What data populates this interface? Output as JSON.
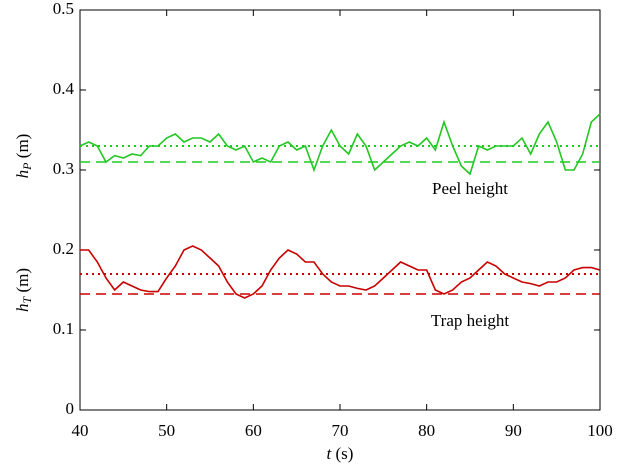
{
  "chart_data": {
    "type": "line",
    "x_label": {
      "symbol": "t",
      "unit": "(s)"
    },
    "y_labels": [
      {
        "symbol": "h",
        "subscript": "P",
        "unit": "(m)"
      },
      {
        "symbol": "h",
        "subscript": "T",
        "unit": "(m)"
      }
    ],
    "x": [
      40,
      41,
      42,
      43,
      44,
      45,
      46,
      47,
      48,
      49,
      50,
      51,
      52,
      53,
      54,
      55,
      56,
      57,
      58,
      59,
      60,
      61,
      62,
      63,
      64,
      65,
      66,
      67,
      68,
      69,
      70,
      71,
      72,
      73,
      74,
      75,
      76,
      77,
      78,
      79,
      80,
      81,
      82,
      83,
      84,
      85,
      86,
      87,
      88,
      89,
      90,
      91,
      92,
      93,
      94,
      95,
      96,
      97,
      98,
      99,
      100
    ],
    "series": [
      {
        "name": "Peel height",
        "color": "#22c722",
        "values": [
          0.33,
          0.335,
          0.33,
          0.31,
          0.318,
          0.315,
          0.32,
          0.318,
          0.33,
          0.33,
          0.34,
          0.345,
          0.335,
          0.34,
          0.34,
          0.335,
          0.345,
          0.33,
          0.325,
          0.33,
          0.31,
          0.315,
          0.31,
          0.33,
          0.335,
          0.325,
          0.33,
          0.3,
          0.33,
          0.35,
          0.33,
          0.32,
          0.345,
          0.33,
          0.3,
          0.31,
          0.32,
          0.33,
          0.335,
          0.33,
          0.34,
          0.325,
          0.36,
          0.33,
          0.305,
          0.295,
          0.33,
          0.325,
          0.33,
          0.33,
          0.33,
          0.34,
          0.32,
          0.345,
          0.36,
          0.335,
          0.3,
          0.3,
          0.32,
          0.36,
          0.37
        ],
        "mean": 0.33,
        "baseline": 0.31
      },
      {
        "name": "Trap height",
        "color": "#c80000",
        "values": [
          0.2,
          0.2,
          0.185,
          0.165,
          0.15,
          0.16,
          0.155,
          0.15,
          0.148,
          0.148,
          0.165,
          0.18,
          0.2,
          0.205,
          0.2,
          0.19,
          0.18,
          0.16,
          0.145,
          0.14,
          0.145,
          0.155,
          0.175,
          0.19,
          0.2,
          0.195,
          0.185,
          0.185,
          0.17,
          0.16,
          0.155,
          0.155,
          0.152,
          0.15,
          0.155,
          0.165,
          0.175,
          0.185,
          0.18,
          0.175,
          0.175,
          0.15,
          0.145,
          0.15,
          0.16,
          0.165,
          0.175,
          0.185,
          0.18,
          0.17,
          0.165,
          0.16,
          0.158,
          0.155,
          0.16,
          0.16,
          0.165,
          0.175,
          0.178,
          0.178,
          0.175
        ],
        "mean": 0.17,
        "baseline": 0.145
      }
    ],
    "xlim": [
      40,
      100
    ],
    "ylim": [
      0,
      0.5
    ],
    "xticks": [
      40,
      50,
      60,
      70,
      80,
      90,
      100
    ],
    "yticks": [
      0,
      0.1,
      0.2,
      0.3,
      0.4,
      0.5
    ],
    "grid": false
  }
}
